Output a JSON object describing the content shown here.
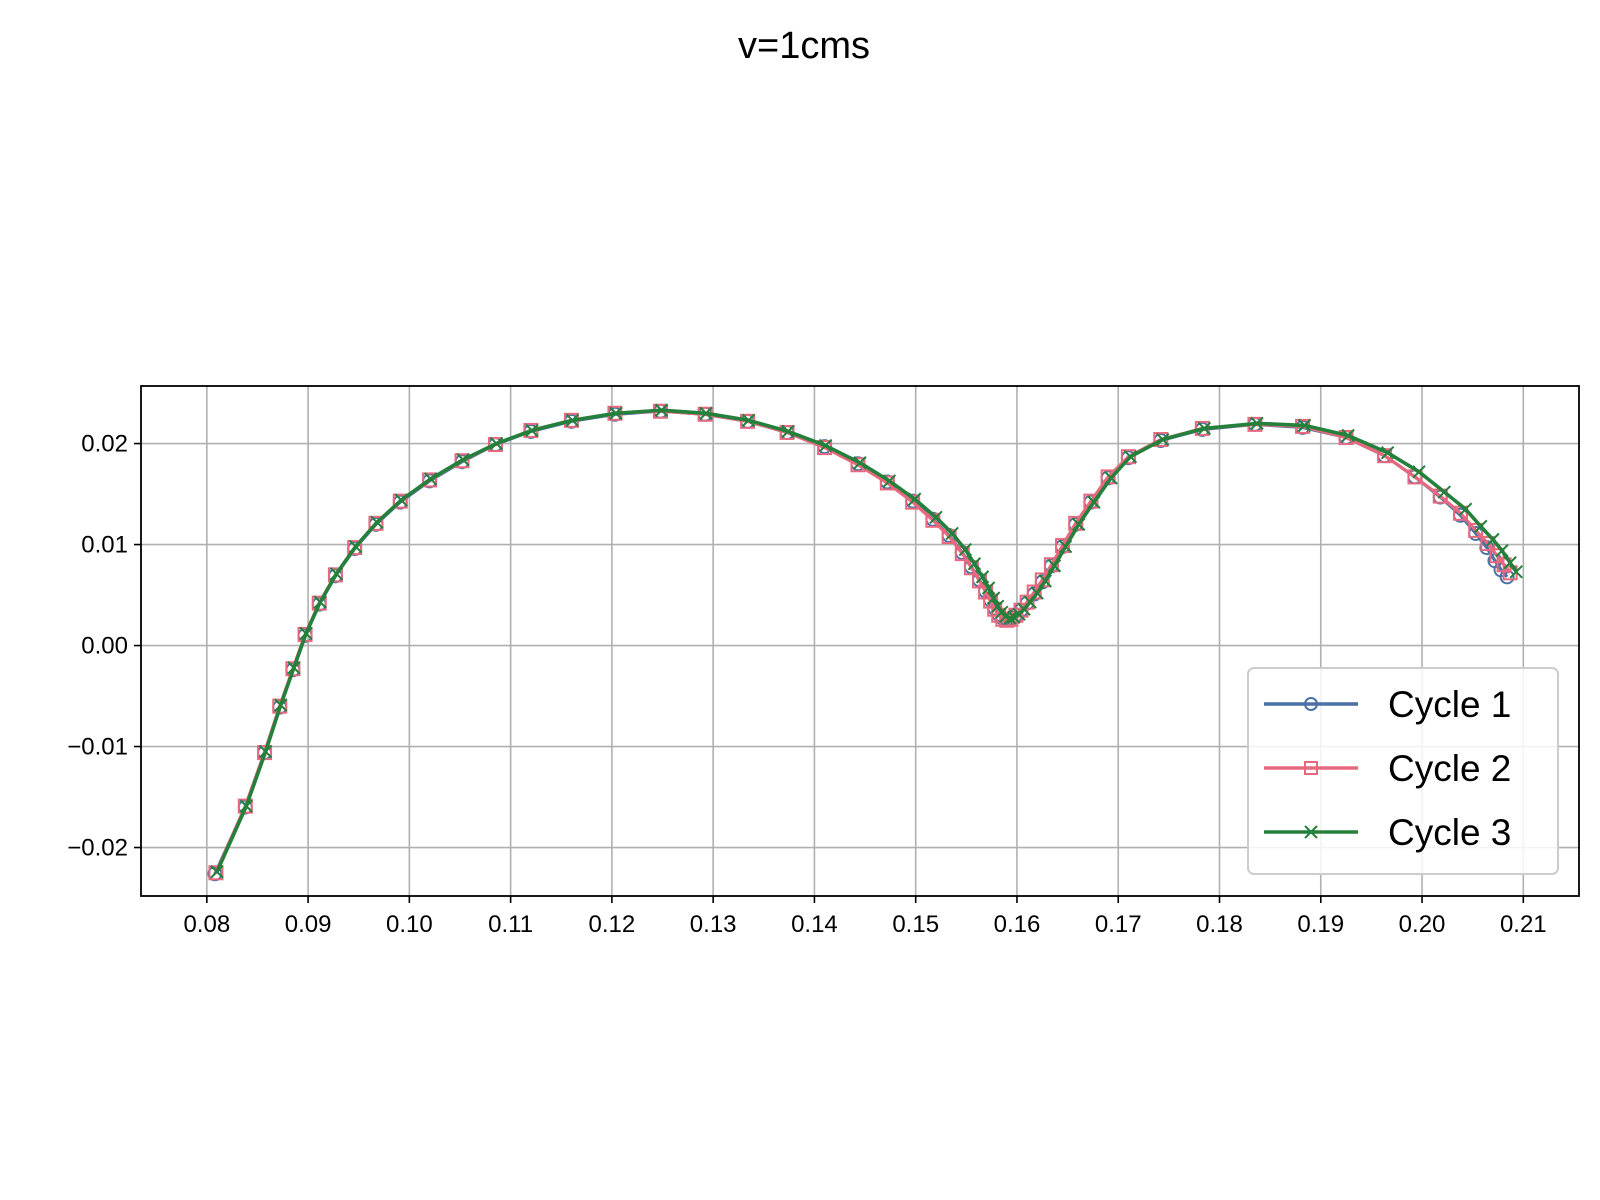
{
  "chart_data": {
    "type": "line",
    "title": "v=1cms",
    "xlabel": "",
    "ylabel": "",
    "xlim": [
      0.0735,
      0.2155
    ],
    "ylim": [
      -0.0248,
      0.0257
    ],
    "xticks": [
      0.08,
      0.09,
      0.1,
      0.11,
      0.12,
      0.13,
      0.14,
      0.15,
      0.16,
      0.17,
      0.18,
      0.19,
      0.2,
      0.21
    ],
    "xtick_labels": [
      "0.08",
      "0.09",
      "0.10",
      "0.11",
      "0.12",
      "0.13",
      "0.14",
      "0.15",
      "0.16",
      "0.17",
      "0.18",
      "0.19",
      "0.20",
      "0.21"
    ],
    "yticks": [
      -0.02,
      -0.01,
      0.0,
      0.01,
      0.02
    ],
    "ytick_labels": [
      "−0.02",
      "−0.01",
      "0.00",
      "0.01",
      "0.02"
    ],
    "grid": true,
    "legend_position": "lower-right",
    "series": [
      {
        "name": "Cycle 1",
        "color": "#4a72a6",
        "marker": "circle-open",
        "x": [
          0.0808,
          0.0838,
          0.0857,
          0.0872,
          0.0885,
          0.0897,
          0.0911,
          0.0927,
          0.0946,
          0.0967,
          0.0991,
          0.102,
          0.1052,
          0.1085,
          0.112,
          0.116,
          0.1203,
          0.1248,
          0.1292,
          0.1334,
          0.1373,
          0.141,
          0.1443,
          0.1472,
          0.1497,
          0.1517,
          0.1533,
          0.1546,
          0.1555,
          0.1563,
          0.1569,
          0.1574,
          0.1578,
          0.1582,
          0.1586,
          0.159,
          0.1594,
          0.1599,
          0.1604,
          0.161,
          0.1617,
          0.1625,
          0.1634,
          0.1645,
          0.1658,
          0.1673,
          0.169,
          0.171,
          0.1742,
          0.1783,
          0.1835,
          0.1882,
          0.1925,
          0.1963,
          0.1993,
          0.2018,
          0.2038,
          0.2053,
          0.2064,
          0.2072,
          0.2078,
          0.2084
        ],
        "y": [
          -0.0226,
          -0.016,
          -0.0106,
          -0.0061,
          -0.0024,
          0.001,
          0.0041,
          0.0069,
          0.0096,
          0.012,
          0.0142,
          0.0163,
          0.0182,
          0.0199,
          0.0212,
          0.0222,
          0.0229,
          0.0232,
          0.0229,
          0.0222,
          0.0211,
          0.0197,
          0.018,
          0.0162,
          0.0143,
          0.0125,
          0.0109,
          0.0092,
          0.0078,
          0.0065,
          0.0054,
          0.0045,
          0.0037,
          0.0031,
          0.0027,
          0.0026,
          0.0027,
          0.003,
          0.0035,
          0.0042,
          0.0051,
          0.0063,
          0.0079,
          0.0098,
          0.012,
          0.0142,
          0.0166,
          0.0186,
          0.0203,
          0.0214,
          0.0219,
          0.0216,
          0.0206,
          0.0188,
          0.0167,
          0.0147,
          0.0129,
          0.0111,
          0.0097,
          0.0084,
          0.0075,
          0.0068
        ]
      },
      {
        "name": "Cycle 2",
        "color": "#e8697e",
        "marker": "square-open",
        "x": [
          0.0809,
          0.0838,
          0.0857,
          0.0872,
          0.0885,
          0.0897,
          0.0911,
          0.0927,
          0.0946,
          0.0967,
          0.0991,
          0.102,
          0.1052,
          0.1085,
          0.112,
          0.116,
          0.1203,
          0.1248,
          0.1292,
          0.1334,
          0.1373,
          0.141,
          0.1443,
          0.1472,
          0.1497,
          0.1517,
          0.1533,
          0.1546,
          0.1555,
          0.1563,
          0.1569,
          0.1574,
          0.1578,
          0.1582,
          0.1586,
          0.159,
          0.1594,
          0.1599,
          0.1604,
          0.161,
          0.1617,
          0.1625,
          0.1634,
          0.1645,
          0.1658,
          0.1673,
          0.169,
          0.171,
          0.1742,
          0.1783,
          0.1835,
          0.1882,
          0.1925,
          0.1963,
          0.1993,
          0.2018,
          0.2038,
          0.2053,
          0.2065,
          0.2074,
          0.2081,
          0.2087
        ],
        "y": [
          -0.0225,
          -0.0159,
          -0.0106,
          -0.006,
          -0.0023,
          0.0011,
          0.0042,
          0.007,
          0.0097,
          0.0121,
          0.0143,
          0.0164,
          0.0183,
          0.0199,
          0.0213,
          0.0223,
          0.023,
          0.0232,
          0.0229,
          0.0222,
          0.0211,
          0.0196,
          0.0179,
          0.0161,
          0.0142,
          0.0124,
          0.0108,
          0.0091,
          0.0077,
          0.0064,
          0.0053,
          0.0044,
          0.0036,
          0.003,
          0.0026,
          0.0025,
          0.0026,
          0.003,
          0.0035,
          0.0043,
          0.0053,
          0.0065,
          0.008,
          0.0099,
          0.0121,
          0.0143,
          0.0167,
          0.0187,
          0.0204,
          0.0215,
          0.0219,
          0.0217,
          0.0206,
          0.0188,
          0.0167,
          0.0148,
          0.0131,
          0.0114,
          0.0101,
          0.0089,
          0.008,
          0.0072
        ]
      },
      {
        "name": "Cycle 3",
        "color": "#24803a",
        "marker": "x",
        "x": [
          0.081,
          0.0839,
          0.0858,
          0.0873,
          0.0886,
          0.0898,
          0.0912,
          0.0928,
          0.0947,
          0.0968,
          0.0992,
          0.1021,
          0.1053,
          0.1086,
          0.1121,
          0.1161,
          0.1204,
          0.1249,
          0.1293,
          0.1335,
          0.1374,
          0.1411,
          0.1445,
          0.1474,
          0.1499,
          0.152,
          0.1536,
          0.1549,
          0.1558,
          0.1566,
          0.1572,
          0.1577,
          0.1581,
          0.1585,
          0.1589,
          0.1593,
          0.1597,
          0.1602,
          0.1607,
          0.1613,
          0.162,
          0.1628,
          0.1637,
          0.1648,
          0.1661,
          0.1676,
          0.1693,
          0.1712,
          0.1744,
          0.1785,
          0.1837,
          0.1884,
          0.1927,
          0.1966,
          0.1997,
          0.2022,
          0.2043,
          0.2058,
          0.207,
          0.2079,
          0.2087,
          0.2093
        ],
        "y": [
          -0.0224,
          -0.0159,
          -0.0105,
          -0.0059,
          -0.0022,
          0.0012,
          0.0043,
          0.0071,
          0.0098,
          0.0122,
          0.0144,
          0.0165,
          0.0184,
          0.02,
          0.0213,
          0.0223,
          0.023,
          0.0233,
          0.023,
          0.0223,
          0.0212,
          0.0198,
          0.0181,
          0.0163,
          0.0145,
          0.0127,
          0.0111,
          0.0095,
          0.0081,
          0.0068,
          0.0057,
          0.0047,
          0.0039,
          0.0033,
          0.0029,
          0.0027,
          0.0028,
          0.0031,
          0.0036,
          0.0043,
          0.0052,
          0.0064,
          0.0079,
          0.0098,
          0.012,
          0.0142,
          0.0166,
          0.0187,
          0.0204,
          0.0215,
          0.022,
          0.0218,
          0.0208,
          0.0191,
          0.0172,
          0.0152,
          0.0135,
          0.0118,
          0.0105,
          0.0094,
          0.0082,
          0.0073
        ]
      }
    ]
  }
}
